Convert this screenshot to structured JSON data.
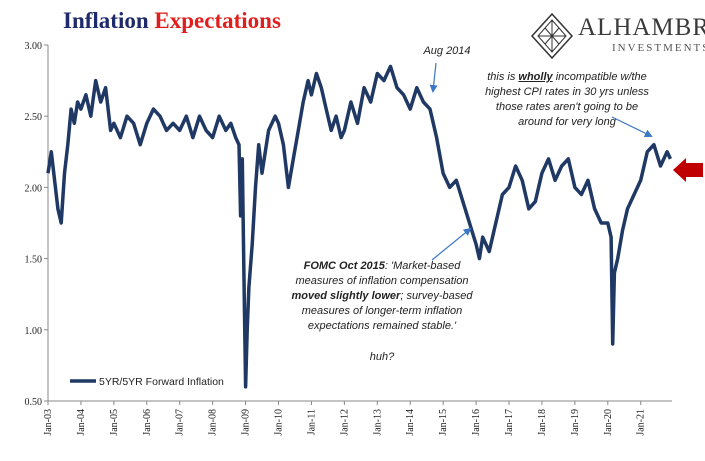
{
  "title": {
    "part1": "Inflation",
    "part2": "Expectations"
  },
  "brand": {
    "name": "ALHAMBRA",
    "sub": "INVESTMENTS"
  },
  "colors": {
    "series": "#1f3864",
    "title_part1": "#1f2a6b",
    "title_part2": "#e01e1e",
    "arrow": "#c00000"
  },
  "annotations": {
    "aug2014": "Aug 2014",
    "incompatible": [
      "this is",
      "wholly",
      "incompatible w/the",
      "highest CPI rates in 30 yrs unless",
      "those rates aren't going to be",
      "around for very long"
    ],
    "fomc": [
      "FOMC Oct 2015",
      ": 'Market-based",
      "measures of inflation compensation",
      "moved slightly lower",
      "; survey-based",
      "measures of longer-term inflation",
      "expectations remained stable.'"
    ],
    "huh": "huh?"
  },
  "chart_data": {
    "type": "line",
    "title": "Inflation Expectations",
    "xlabel": "",
    "ylabel": "",
    "ylim": [
      0.5,
      3.0
    ],
    "yticks": [
      "0.50",
      "1.00",
      "1.50",
      "2.00",
      "2.50",
      "3.00"
    ],
    "xticks": [
      "Jan-03",
      "Jan-04",
      "Jan-05",
      "Jan-06",
      "Jan-07",
      "Jan-08",
      "Jan-09",
      "Jan-10",
      "Jan-11",
      "Jan-12",
      "Jan-13",
      "Jan-14",
      "Jan-15",
      "Jan-16",
      "Jan-17",
      "Jan-18",
      "Jan-19",
      "Jan-20",
      "Jan-21"
    ],
    "legend": "bottom-left",
    "series": [
      {
        "name": "5YR/5YR Forward Inflation",
        "x": [
          2003.0,
          2003.1,
          2003.2,
          2003.3,
          2003.4,
          2003.5,
          2003.6,
          2003.7,
          2003.8,
          2003.9,
          2004.0,
          2004.15,
          2004.3,
          2004.45,
          2004.6,
          2004.75,
          2004.9,
          2005.0,
          2005.2,
          2005.4,
          2005.6,
          2005.8,
          2006.0,
          2006.2,
          2006.4,
          2006.6,
          2006.8,
          2007.0,
          2007.2,
          2007.4,
          2007.6,
          2007.8,
          2008.0,
          2008.2,
          2008.4,
          2008.55,
          2008.7,
          2008.8,
          2008.85,
          2008.9,
          2008.95,
          2009.0,
          2009.05,
          2009.1,
          2009.2,
          2009.3,
          2009.4,
          2009.5,
          2009.7,
          2009.9,
          2010.0,
          2010.15,
          2010.3,
          2010.45,
          2010.6,
          2010.75,
          2010.9,
          2011.0,
          2011.15,
          2011.3,
          2011.45,
          2011.6,
          2011.75,
          2011.9,
          2012.0,
          2012.2,
          2012.4,
          2012.6,
          2012.8,
          2013.0,
          2013.2,
          2013.4,
          2013.6,
          2013.8,
          2014.0,
          2014.2,
          2014.4,
          2014.6,
          2014.8,
          2015.0,
          2015.2,
          2015.4,
          2015.6,
          2015.8,
          2016.0,
          2016.1,
          2016.2,
          2016.4,
          2016.6,
          2016.8,
          2017.0,
          2017.2,
          2017.4,
          2017.6,
          2017.8,
          2018.0,
          2018.2,
          2018.4,
          2018.6,
          2018.8,
          2019.0,
          2019.2,
          2019.4,
          2019.6,
          2019.8,
          2020.0,
          2020.1,
          2020.15,
          2020.2,
          2020.3,
          2020.45,
          2020.6,
          2020.8,
          2021.0,
          2021.2,
          2021.4,
          2021.6,
          2021.8,
          2021.9
        ],
        "y": [
          2.1,
          2.25,
          2.05,
          1.85,
          1.75,
          2.1,
          2.3,
          2.55,
          2.45,
          2.6,
          2.55,
          2.65,
          2.5,
          2.75,
          2.6,
          2.7,
          2.4,
          2.45,
          2.35,
          2.5,
          2.45,
          2.3,
          2.45,
          2.55,
          2.5,
          2.4,
          2.45,
          2.4,
          2.5,
          2.35,
          2.5,
          2.4,
          2.35,
          2.5,
          2.4,
          2.45,
          2.35,
          2.3,
          1.8,
          2.2,
          1.4,
          0.6,
          1.0,
          1.3,
          1.6,
          2.0,
          2.3,
          2.1,
          2.4,
          2.5,
          2.45,
          2.3,
          2.0,
          2.2,
          2.4,
          2.6,
          2.75,
          2.65,
          2.8,
          2.7,
          2.55,
          2.4,
          2.5,
          2.35,
          2.4,
          2.6,
          2.45,
          2.7,
          2.6,
          2.8,
          2.75,
          2.85,
          2.7,
          2.65,
          2.55,
          2.7,
          2.6,
          2.55,
          2.35,
          2.1,
          2.0,
          2.05,
          1.9,
          1.75,
          1.6,
          1.5,
          1.65,
          1.55,
          1.75,
          1.95,
          2.0,
          2.15,
          2.05,
          1.85,
          1.9,
          2.1,
          2.2,
          2.05,
          2.15,
          2.2,
          2.0,
          1.95,
          2.05,
          1.85,
          1.75,
          1.75,
          1.65,
          0.9,
          1.4,
          1.5,
          1.7,
          1.85,
          1.95,
          2.05,
          2.25,
          2.3,
          2.15,
          2.25,
          2.2
        ]
      }
    ]
  }
}
